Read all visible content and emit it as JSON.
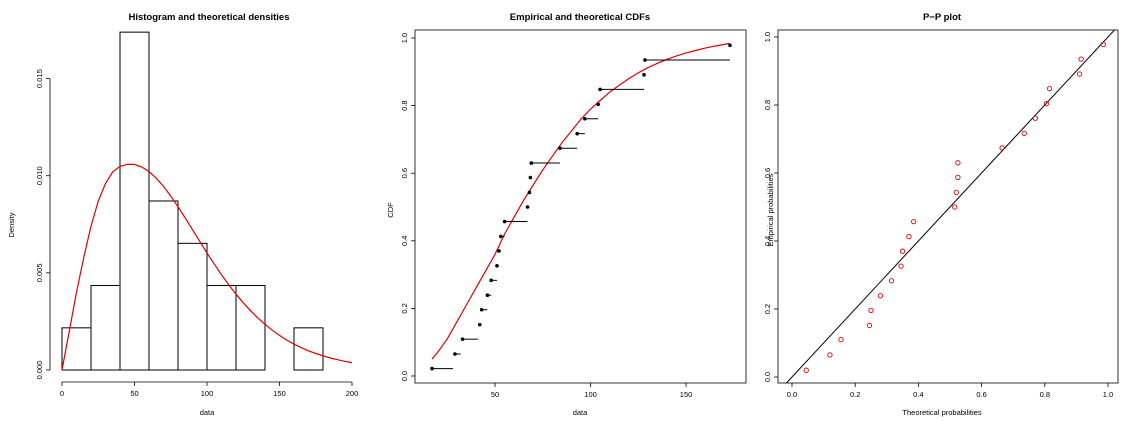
{
  "colors": {
    "line": "#e00000",
    "ink": "#000000",
    "background": "#ffffff"
  },
  "chart_data": [
    {
      "type": "histogram",
      "title": "Histogram and theoretical densities",
      "xlabel": "data",
      "ylabel": "Density",
      "xlim": [
        0,
        200
      ],
      "ylim": [
        0,
        0.0175
      ],
      "xticks": [
        "0",
        "50",
        "100",
        "150",
        "200"
      ],
      "yticks": [
        "0.000",
        "0.005",
        "0.010",
        "0.015"
      ],
      "bins": [
        {
          "from": 0,
          "to": 20,
          "density": 0.00217
        },
        {
          "from": 20,
          "to": 40,
          "density": 0.00435
        },
        {
          "from": 40,
          "to": 60,
          "density": 0.01739
        },
        {
          "from": 60,
          "to": 80,
          "density": 0.0087
        },
        {
          "from": 80,
          "to": 100,
          "density": 0.00652
        },
        {
          "from": 100,
          "to": 120,
          "density": 0.00435
        },
        {
          "from": 120,
          "to": 140,
          "density": 0.00435
        },
        {
          "from": 140,
          "to": 160,
          "density": 0
        },
        {
          "from": 160,
          "to": 180,
          "density": 0.00217
        }
      ],
      "density_curve": {
        "x": [
          0,
          5,
          10,
          15,
          20,
          25,
          30,
          35,
          40,
          45,
          50,
          55,
          60,
          65,
          70,
          75,
          80,
          85,
          90,
          95,
          100,
          105,
          110,
          115,
          120,
          125,
          130,
          135,
          140,
          145,
          150,
          155,
          160,
          165,
          170,
          175,
          180,
          185,
          190,
          195,
          200
        ],
        "y": [
          0,
          0.002,
          0.004,
          0.0058,
          0.0074,
          0.0087,
          0.0096,
          0.0102,
          0.01048,
          0.01059,
          0.01058,
          0.01045,
          0.01021,
          0.00987,
          0.00945,
          0.00895,
          0.0084,
          0.00782,
          0.00722,
          0.00662,
          0.00602,
          0.00545,
          0.0049,
          0.00438,
          0.0039,
          0.00346,
          0.00305,
          0.00268,
          0.00235,
          0.00205,
          0.00178,
          0.00154,
          0.00133,
          0.00115,
          0.00099,
          0.00085,
          0.00073,
          0.00062,
          0.00053,
          0.00045,
          0.00038
        ]
      }
    },
    {
      "type": "line",
      "title": "Empirical and theoretical CDFs",
      "xlabel": "data",
      "ylabel": "CDF",
      "xlim": [
        16,
        174
      ],
      "ylim": [
        0,
        1
      ],
      "xticks": [
        50,
        100,
        150
      ],
      "yticks": [
        "0.0",
        "0.2",
        "0.4",
        "0.6",
        "0.8",
        "1.0"
      ],
      "ecdf_steps": [
        {
          "x": 17,
          "x_end": 28,
          "y": 0.022
        },
        {
          "x": 29,
          "x_end": 32,
          "y": 0.065
        },
        {
          "x": 33,
          "x_end": 41,
          "y": 0.109
        },
        {
          "x": 42,
          "x_end": 43,
          "y": 0.152
        },
        {
          "x": 43,
          "x_end": 46,
          "y": 0.196
        },
        {
          "x": 46,
          "x_end": 48,
          "y": 0.239
        },
        {
          "x": 48,
          "x_end": 51,
          "y": 0.283
        },
        {
          "x": 51,
          "x_end": 52,
          "y": 0.326
        },
        {
          "x": 52,
          "x_end": 53,
          "y": 0.37
        },
        {
          "x": 53,
          "x_end": 55,
          "y": 0.413
        },
        {
          "x": 55,
          "x_end": 67,
          "y": 0.457
        },
        {
          "x": 67,
          "x_end": 68,
          "y": 0.5
        },
        {
          "x": 68,
          "x_end": 68.5,
          "y": 0.543
        },
        {
          "x": 68.5,
          "x_end": 69,
          "y": 0.587
        },
        {
          "x": 69,
          "x_end": 84,
          "y": 0.63
        },
        {
          "x": 84,
          "x_end": 93,
          "y": 0.674
        },
        {
          "x": 93,
          "x_end": 97,
          "y": 0.717
        },
        {
          "x": 97,
          "x_end": 104,
          "y": 0.761
        },
        {
          "x": 104,
          "x_end": 105,
          "y": 0.804
        },
        {
          "x": 105,
          "x_end": 128,
          "y": 0.848
        },
        {
          "x": 128,
          "x_end": 128.5,
          "y": 0.891
        },
        {
          "x": 128.5,
          "x_end": 173,
          "y": 0.935
        },
        {
          "x": 173,
          "x_end": 173,
          "y": 0.978
        }
      ],
      "theoretical_cdf": {
        "x": [
          17,
          20,
          25,
          30,
          35,
          40,
          45,
          50,
          55,
          60,
          65,
          70,
          75,
          80,
          85,
          90,
          95,
          100,
          105,
          110,
          115,
          120,
          125,
          130,
          135,
          140,
          145,
          150,
          155,
          160,
          165,
          170,
          173
        ],
        "y": [
          0.05,
          0.07,
          0.11,
          0.16,
          0.21,
          0.26,
          0.31,
          0.36,
          0.42,
          0.47,
          0.52,
          0.565,
          0.61,
          0.65,
          0.69,
          0.725,
          0.76,
          0.79,
          0.815,
          0.84,
          0.86,
          0.88,
          0.897,
          0.912,
          0.925,
          0.937,
          0.947,
          0.956,
          0.963,
          0.97,
          0.976,
          0.981,
          0.984
        ]
      }
    },
    {
      "type": "scatter",
      "title": "P−P plot",
      "xlabel": "Theoretical probabilities",
      "ylabel": "Empirical probabilities",
      "xlim": [
        0,
        1.03
      ],
      "ylim": [
        -0.01,
        1.01
      ],
      "xticks": [
        "0.0",
        "0.2",
        "0.4",
        "0.6",
        "0.8",
        "1.0"
      ],
      "yticks": [
        "0.0",
        "0.2",
        "0.4",
        "0.6",
        "0.8",
        "1.0"
      ],
      "reference_line": {
        "x": [
          0,
          1.03
        ],
        "y": [
          0,
          1.03
        ]
      },
      "points": {
        "x": [
          0.045,
          0.12,
          0.155,
          0.245,
          0.25,
          0.28,
          0.315,
          0.345,
          0.35,
          0.37,
          0.385,
          0.515,
          0.52,
          0.525,
          0.525,
          0.665,
          0.735,
          0.77,
          0.805,
          0.815,
          0.91,
          0.915,
          0.985
        ],
        "y": [
          0.02,
          0.065,
          0.11,
          0.152,
          0.196,
          0.239,
          0.283,
          0.326,
          0.37,
          0.413,
          0.457,
          0.5,
          0.543,
          0.587,
          0.63,
          0.674,
          0.717,
          0.761,
          0.804,
          0.848,
          0.891,
          0.935,
          0.978
        ]
      }
    }
  ]
}
